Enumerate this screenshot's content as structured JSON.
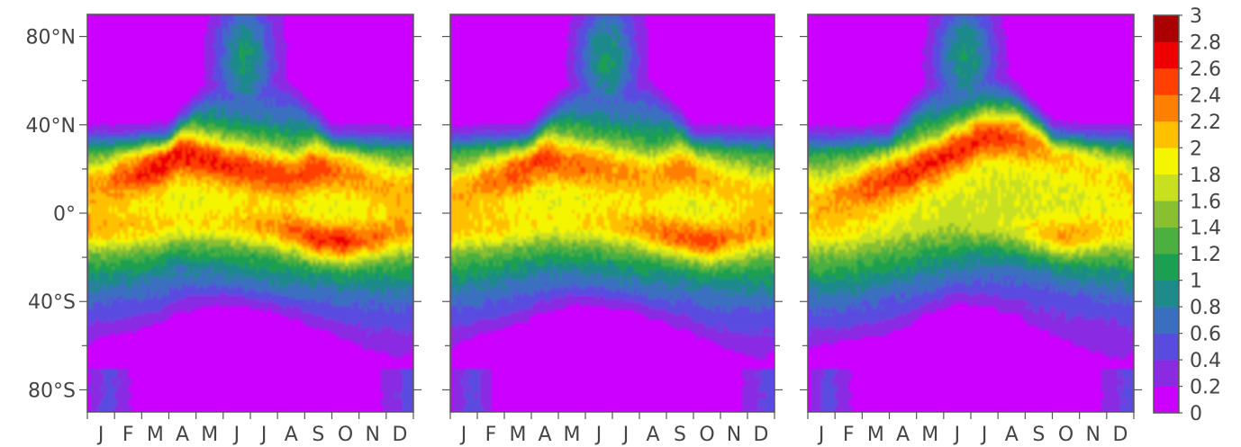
{
  "chart_data": {
    "type": "heatmap",
    "x_axis": {
      "months": [
        "J",
        "F",
        "M",
        "A",
        "M",
        "J",
        "J",
        "A",
        "S",
        "O",
        "N",
        "D"
      ]
    },
    "y_axis": {
      "range": [
        -90,
        90
      ],
      "ticks": [
        80,
        40,
        0,
        -40,
        -80
      ],
      "tick_labels": [
        "80°N",
        "40°N",
        "0°",
        "40°S",
        "80°S"
      ]
    },
    "colorbar": {
      "levels": [
        0,
        0.2,
        0.4,
        0.6,
        0.8,
        1,
        1.2,
        1.4,
        1.6,
        1.8,
        2,
        2.2,
        2.4,
        2.6,
        2.8,
        3
      ],
      "labels": [
        "0",
        "0.2",
        "0.4",
        "0.6",
        "0.8",
        "1",
        "1.2",
        "1.4",
        "1.6",
        "1.8",
        "2",
        "2.2",
        "2.4",
        "2.6",
        "2.8",
        "3"
      ],
      "colors": [
        "#cc00ff",
        "#8a2be2",
        "#5a4be0",
        "#3a6fc0",
        "#1f8a8a",
        "#1aa050",
        "#4bb040",
        "#88c030",
        "#c8e020",
        "#f5f500",
        "#ffc000",
        "#ff8000",
        "#ff4000",
        "#ee0000",
        "#aa0000"
      ]
    },
    "panels": [
      {
        "name": "panel-1",
        "north_band": {
          "peak_lat": [
            14,
            18,
            22,
            28,
            25,
            22,
            20,
            18,
            22,
            20,
            16,
            12
          ],
          "peak_val": [
            2.0,
            2.3,
            2.55,
            2.6,
            2.5,
            2.4,
            2.35,
            2.3,
            2.45,
            2.2,
            2.0,
            1.9
          ]
        },
        "south_band": {
          "peak_lat": [
            -8,
            -8,
            -7,
            -6,
            -6,
            -6,
            -7,
            -9,
            -13,
            -14,
            -12,
            -9
          ],
          "peak_val": [
            1.8,
            1.8,
            1.8,
            1.75,
            1.75,
            1.8,
            1.9,
            2.1,
            2.4,
            2.4,
            2.1,
            1.9
          ]
        },
        "south_low_extent": [
          -58,
          -56,
          -52,
          -46,
          -42,
          -42,
          -44,
          -48,
          -54,
          -60,
          -66,
          -70
        ]
      },
      {
        "name": "panel-2",
        "north_band": {
          "peak_lat": [
            12,
            16,
            20,
            26,
            24,
            22,
            20,
            18,
            22,
            18,
            14,
            10
          ],
          "peak_val": [
            1.9,
            2.1,
            2.3,
            2.4,
            2.25,
            2.15,
            2.05,
            2.0,
            2.2,
            2.0,
            1.85,
            1.8
          ]
        },
        "south_band": {
          "peak_lat": [
            -8,
            -8,
            -7,
            -6,
            -6,
            -6,
            -7,
            -9,
            -12,
            -14,
            -12,
            -9
          ],
          "peak_val": [
            1.7,
            1.7,
            1.7,
            1.7,
            1.7,
            1.75,
            1.85,
            2.0,
            2.25,
            2.3,
            2.0,
            1.8
          ]
        },
        "south_low_extent": [
          -60,
          -56,
          -52,
          -46,
          -42,
          -42,
          -44,
          -48,
          -54,
          -60,
          -66,
          -70
        ]
      },
      {
        "name": "panel-3",
        "north_band": {
          "peak_lat": [
            8,
            10,
            14,
            18,
            24,
            30,
            36,
            36,
            32,
            28,
            22,
            18
          ],
          "peak_val": [
            1.8,
            2.0,
            2.25,
            2.4,
            2.45,
            2.55,
            2.65,
            2.55,
            2.3,
            2.0,
            1.85,
            1.8
          ]
        },
        "south_band": {
          "peak_lat": [
            -8,
            -8,
            -7,
            -6,
            -6,
            -6,
            -7,
            -8,
            -10,
            -12,
            -10,
            -9
          ],
          "peak_val": [
            1.6,
            1.55,
            1.5,
            1.45,
            1.45,
            1.5,
            1.6,
            1.7,
            1.95,
            2.1,
            1.9,
            1.7
          ]
        },
        "south_low_extent": [
          -62,
          -60,
          -58,
          -54,
          -46,
          -42,
          -44,
          -48,
          -56,
          -62,
          -68,
          -72
        ]
      }
    ]
  }
}
